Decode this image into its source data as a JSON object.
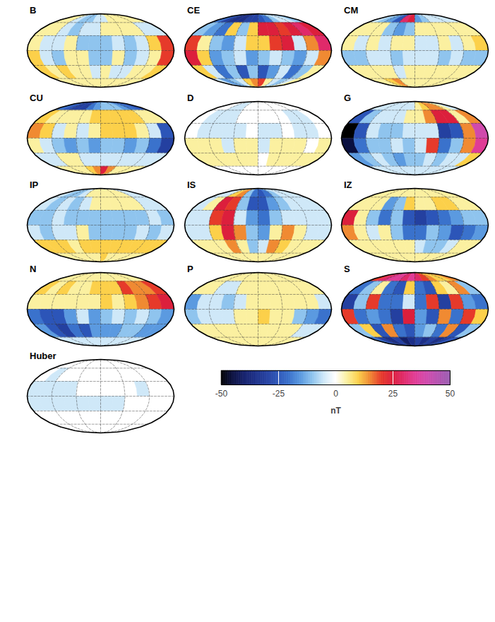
{
  "chart_data": [
    {
      "type": "heatmap",
      "title": "B",
      "values": [
        [
          5,
          5,
          -5,
          -10,
          -10,
          -5,
          -5,
          5,
          5,
          5,
          5,
          5
        ],
        [
          5,
          5,
          -5,
          -10,
          -5,
          -5,
          5,
          5,
          5,
          5,
          -5,
          -5
        ],
        [
          5,
          -5,
          -5,
          5,
          -10,
          -10,
          -10,
          -5,
          -10,
          -5,
          10,
          20
        ],
        [
          10,
          -5,
          -10,
          5,
          5,
          -10,
          -10,
          5,
          -10,
          -5,
          5,
          20
        ],
        [
          10,
          5,
          10,
          5,
          5,
          -5,
          5,
          -5,
          -5,
          5,
          5,
          10
        ],
        [
          5,
          5,
          5,
          5,
          5,
          5,
          5,
          5,
          5,
          5,
          5,
          5
        ]
      ]
    },
    {
      "type": "heatmap",
      "title": "CE",
      "values": [
        [
          -20,
          -30,
          -35,
          -35,
          -30,
          -30,
          -25,
          -20,
          -10,
          -5,
          -5,
          -10
        ],
        [
          -10,
          -15,
          -20,
          10,
          -10,
          10,
          25,
          25,
          20,
          25,
          30,
          25
        ],
        [
          20,
          5,
          -10,
          -15,
          -5,
          10,
          10,
          20,
          25,
          -5,
          15,
          30
        ],
        [
          25,
          10,
          -15,
          -10,
          -5,
          -15,
          -10,
          -5,
          -10,
          -15,
          -5,
          15
        ],
        [
          10,
          -5,
          -20,
          -10,
          -25,
          -10,
          -25,
          -15,
          -5,
          -20,
          -10,
          5
        ],
        [
          -5,
          -15,
          -10,
          -5,
          10,
          15,
          20,
          5,
          -5,
          -10,
          -5,
          5
        ]
      ]
    },
    {
      "type": "heatmap",
      "title": "CM",
      "values": [
        [
          -5,
          -10,
          -15,
          -25,
          30,
          25,
          -15,
          -10,
          -5,
          -5,
          -5,
          -5
        ],
        [
          5,
          5,
          5,
          -10,
          -15,
          -10,
          5,
          5,
          5,
          5,
          5,
          5
        ],
        [
          5,
          -5,
          5,
          -5,
          5,
          5,
          -5,
          -5,
          5,
          -5,
          5,
          10
        ],
        [
          -10,
          -10,
          -5,
          -5,
          -10,
          -5,
          -5,
          -5,
          -10,
          -5,
          -10,
          -10
        ],
        [
          5,
          5,
          5,
          5,
          -5,
          5,
          5,
          5,
          5,
          5,
          5,
          5
        ],
        [
          5,
          5,
          10,
          15,
          5,
          5,
          5,
          5,
          5,
          5,
          5,
          5
        ]
      ]
    },
    {
      "type": "heatmap",
      "title": "CU",
      "values": [
        [
          -20,
          -25,
          -30,
          -30,
          -20,
          -15,
          -10,
          -10,
          -10,
          -15,
          -20,
          -25
        ],
        [
          10,
          5,
          5,
          5,
          5,
          10,
          10,
          10,
          10,
          10,
          5,
          5
        ],
        [
          15,
          10,
          -5,
          5,
          -5,
          5,
          10,
          10,
          10,
          5,
          -5,
          -25
        ],
        [
          5,
          -5,
          -10,
          -15,
          -10,
          -15,
          -10,
          -10,
          -15,
          -10,
          -20,
          -30
        ],
        [
          -5,
          -5,
          5,
          5,
          -5,
          -5,
          -5,
          -5,
          -5,
          -5,
          -5,
          -5
        ],
        [
          5,
          5,
          5,
          5,
          10,
          15,
          25,
          15,
          5,
          5,
          5,
          5
        ]
      ]
    },
    {
      "type": "heatmap",
      "title": "D",
      "values": [
        [
          0,
          0,
          -5,
          -5,
          0,
          0,
          0,
          0,
          0,
          0,
          0,
          0
        ],
        [
          0,
          -5,
          -5,
          -5,
          0,
          0,
          0,
          0,
          0,
          -5,
          -5,
          0
        ],
        [
          0,
          -5,
          -5,
          -5,
          -5,
          0,
          -5,
          -5,
          0,
          -5,
          -5,
          0
        ],
        [
          5,
          5,
          5,
          -5,
          5,
          5,
          -5,
          5,
          5,
          5,
          0,
          5
        ],
        [
          5,
          5,
          5,
          5,
          5,
          5,
          0,
          5,
          5,
          5,
          5,
          5
        ],
        [
          0,
          0,
          0,
          0,
          0,
          0,
          0,
          0,
          0,
          0,
          0,
          0
        ]
      ]
    },
    {
      "type": "heatmap",
      "title": "G",
      "values": [
        [
          -5,
          -5,
          -5,
          -5,
          -5,
          -5,
          5,
          10,
          15,
          15,
          5,
          -5
        ],
        [
          -25,
          -10,
          -5,
          -5,
          -5,
          5,
          5,
          15,
          25,
          25,
          5,
          15
        ],
        [
          -50,
          -25,
          -5,
          -10,
          -10,
          -5,
          -5,
          -5,
          -30,
          -25,
          15,
          40
        ],
        [
          -45,
          -20,
          -10,
          -10,
          -5,
          -10,
          -5,
          20,
          -20,
          -10,
          15,
          35
        ],
        [
          -15,
          -10,
          -5,
          -10,
          -15,
          -10,
          -10,
          -5,
          -10,
          -5,
          -5,
          10
        ],
        [
          -5,
          -5,
          -5,
          -5,
          -5,
          -5,
          -5,
          -5,
          -5,
          -5,
          -5,
          -5
        ]
      ]
    },
    {
      "type": "heatmap",
      "title": "IP",
      "values": [
        [
          -5,
          -10,
          -10,
          -5,
          5,
          5,
          5,
          5,
          5,
          5,
          -5,
          -5
        ],
        [
          -5,
          -10,
          -5,
          -10,
          -5,
          5,
          5,
          5,
          5,
          5,
          -5,
          -5
        ],
        [
          -10,
          -10,
          -5,
          -10,
          -10,
          -10,
          -10,
          -10,
          -10,
          -10,
          -5,
          -10
        ],
        [
          -5,
          -10,
          -5,
          -5,
          5,
          -10,
          -10,
          -10,
          -10,
          -5,
          -10,
          -5
        ],
        [
          10,
          10,
          10,
          5,
          10,
          10,
          10,
          10,
          10,
          10,
          10,
          10
        ],
        [
          5,
          5,
          5,
          5,
          5,
          5,
          10,
          5,
          5,
          5,
          5,
          5
        ]
      ]
    },
    {
      "type": "heatmap",
      "title": "IS",
      "values": [
        [
          -5,
          -5,
          10,
          15,
          -10,
          -20,
          -25,
          -20,
          -10,
          -5,
          -5,
          -5
        ],
        [
          -5,
          5,
          25,
          20,
          -10,
          -25,
          -25,
          -15,
          -10,
          -5,
          -5,
          -5
        ],
        [
          -5,
          -5,
          20,
          25,
          -5,
          -15,
          -20,
          -10,
          -5,
          -5,
          -5,
          -5
        ],
        [
          -5,
          -5,
          10,
          25,
          15,
          -10,
          -15,
          5,
          15,
          5,
          -5,
          -5
        ],
        [
          5,
          5,
          5,
          15,
          5,
          -10,
          -5,
          15,
          10,
          5,
          5,
          5
        ],
        [
          5,
          5,
          5,
          5,
          5,
          5,
          5,
          5,
          5,
          5,
          5,
          5
        ]
      ]
    },
    {
      "type": "heatmap",
      "title": "IZ",
      "values": [
        [
          5,
          5,
          5,
          5,
          5,
          5,
          5,
          5,
          5,
          5,
          5,
          5
        ],
        [
          5,
          5,
          5,
          -15,
          -10,
          10,
          5,
          5,
          10,
          10,
          5,
          5
        ],
        [
          25,
          5,
          -10,
          -20,
          -10,
          -25,
          -30,
          -25,
          -20,
          -15,
          -10,
          -10
        ],
        [
          15,
          5,
          -5,
          5,
          -10,
          -20,
          -20,
          -10,
          -15,
          -25,
          -20,
          -15
        ],
        [
          5,
          5,
          5,
          5,
          5,
          5,
          -5,
          -10,
          -10,
          -5,
          5,
          5
        ],
        [
          5,
          5,
          5,
          5,
          5,
          5,
          5,
          5,
          5,
          5,
          5,
          5
        ]
      ]
    },
    {
      "type": "heatmap",
      "title": "N",
      "values": [
        [
          5,
          5,
          5,
          5,
          5,
          5,
          5,
          5,
          5,
          5,
          5,
          5
        ],
        [
          10,
          5,
          10,
          5,
          5,
          10,
          10,
          10,
          20,
          15,
          15,
          20
        ],
        [
          5,
          5,
          5,
          5,
          5,
          5,
          10,
          5,
          10,
          15,
          20,
          25
        ],
        [
          -20,
          -25,
          -25,
          -15,
          -5,
          -15,
          -10,
          -5,
          -10,
          -5,
          -10,
          -15
        ],
        [
          -15,
          -25,
          -30,
          -20,
          -25,
          -15,
          -15,
          -15,
          -10,
          -10,
          -15,
          -15
        ],
        [
          -5,
          -5,
          -5,
          -5,
          -5,
          -5,
          -5,
          -5,
          -5,
          -5,
          -5,
          -5
        ]
      ]
    },
    {
      "type": "heatmap",
      "title": "P",
      "values": [
        [
          5,
          5,
          5,
          5,
          5,
          5,
          5,
          5,
          5,
          5,
          5,
          5
        ],
        [
          5,
          5,
          -5,
          -5,
          5,
          5,
          5,
          5,
          5,
          5,
          5,
          5
        ],
        [
          -15,
          -5,
          -5,
          -10,
          -5,
          5,
          5,
          5,
          5,
          5,
          5,
          -5
        ],
        [
          -10,
          -5,
          -5,
          -5,
          5,
          5,
          10,
          5,
          5,
          -10,
          -15,
          -20
        ],
        [
          5,
          5,
          5,
          5,
          5,
          5,
          5,
          5,
          5,
          5,
          -5,
          -5
        ],
        [
          5,
          5,
          5,
          5,
          5,
          5,
          5,
          5,
          5,
          5,
          5,
          5
        ]
      ]
    },
    {
      "type": "heatmap",
      "title": "S",
      "values": [
        [
          20,
          30,
          35,
          35,
          30,
          35,
          30,
          20,
          15,
          10,
          10,
          15
        ],
        [
          -20,
          -10,
          5,
          -20,
          -25,
          10,
          -20,
          -25,
          10,
          5,
          15,
          -10
        ],
        [
          -30,
          -10,
          20,
          -20,
          -20,
          -5,
          -20,
          20,
          -30,
          20,
          -15,
          -20
        ],
        [
          20,
          -20,
          -15,
          -20,
          -30,
          25,
          -15,
          -25,
          15,
          -20,
          20,
          10
        ],
        [
          -10,
          10,
          -25,
          15,
          -20,
          -25,
          -15,
          -10,
          -20,
          15,
          -25,
          -10
        ],
        [
          -20,
          -30,
          -35,
          -30,
          -40,
          -35,
          -30,
          -35,
          -30,
          -35,
          -30,
          -25
        ]
      ]
    },
    {
      "type": "heatmap",
      "title": "Huber",
      "values": [
        [
          0,
          0,
          0,
          0,
          0,
          0,
          0,
          0,
          0,
          0,
          0,
          0
        ],
        [
          0,
          -5,
          0,
          0,
          0,
          0,
          0,
          0,
          0,
          0,
          0,
          0
        ],
        [
          -5,
          -5,
          -5,
          -5,
          0,
          0,
          0,
          0,
          0,
          -5,
          0,
          0
        ],
        [
          -5,
          -5,
          -5,
          -5,
          -5,
          -5,
          -5,
          -5,
          0,
          0,
          0,
          0
        ],
        [
          0,
          0,
          0,
          0,
          0,
          0,
          0,
          0,
          0,
          0,
          0,
          0
        ],
        [
          0,
          0,
          0,
          0,
          0,
          0,
          0,
          0,
          0,
          0,
          0,
          0
        ]
      ]
    }
  ],
  "grid": {
    "lon": [
      -165,
      -135,
      -105,
      -75,
      -45,
      -15,
      15,
      45,
      75,
      105,
      135,
      165
    ],
    "lat": [
      75,
      45,
      15,
      -15,
      -45,
      -75
    ]
  },
  "colorbar": {
    "range": [
      -50,
      50
    ],
    "ticks": [
      -50,
      -25,
      0,
      25,
      50
    ],
    "label": "nT"
  }
}
